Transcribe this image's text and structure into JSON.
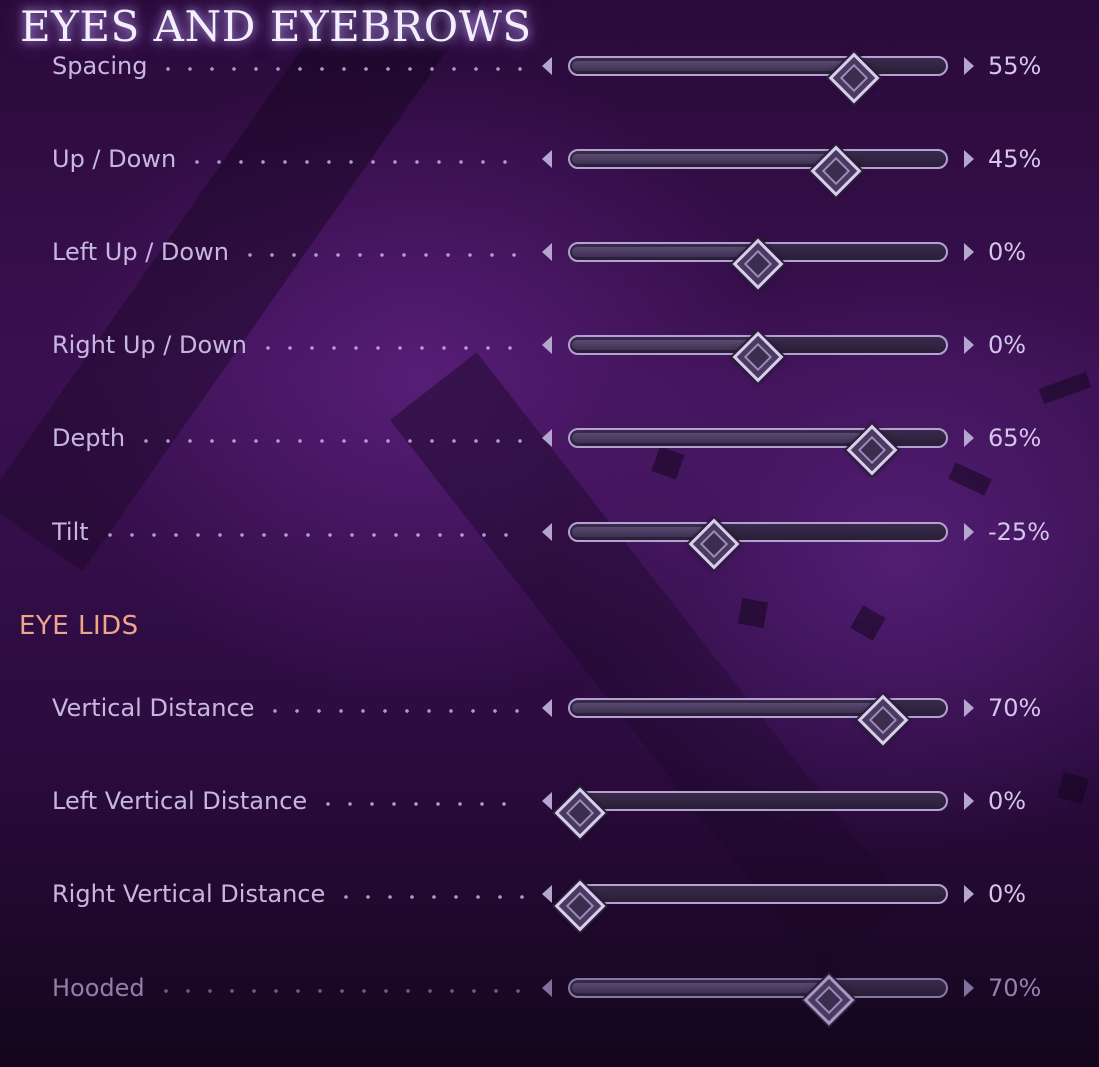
{
  "header": {
    "title": "EYES AND EYEBROWS"
  },
  "eyes_sliders": [
    {
      "label": "Spacing",
      "value_text": "55%",
      "level": 0.77
    },
    {
      "label": "Up / Down",
      "value_text": "45%",
      "level": 0.72
    },
    {
      "label": "Left Up / Down",
      "value_text": "0%",
      "level": 0.5
    },
    {
      "label": "Right Up / Down",
      "value_text": "0%",
      "level": 0.5
    },
    {
      "label": "Depth",
      "value_text": "65%",
      "level": 0.82
    },
    {
      "label": "Tilt",
      "value_text": "-25%",
      "level": 0.375
    }
  ],
  "eye_lids": {
    "title": "EYE LIDS",
    "sliders": [
      {
        "label": "Vertical Distance",
        "value_text": "70%",
        "level": 0.85
      },
      {
        "label": "Left Vertical Distance",
        "value_text": "0%",
        "level": 0.0
      },
      {
        "label": "Right Vertical Distance",
        "value_text": "0%",
        "level": 0.0
      },
      {
        "label": "Hooded",
        "value_text": "70%",
        "level": 0.7,
        "dimmed": true
      }
    ]
  },
  "colors": {
    "title": "#f3eefb",
    "section_title": "#f0a58a",
    "label": "#c7b7e0",
    "track_border": "#b3a2cf",
    "background": "#3a1050"
  }
}
